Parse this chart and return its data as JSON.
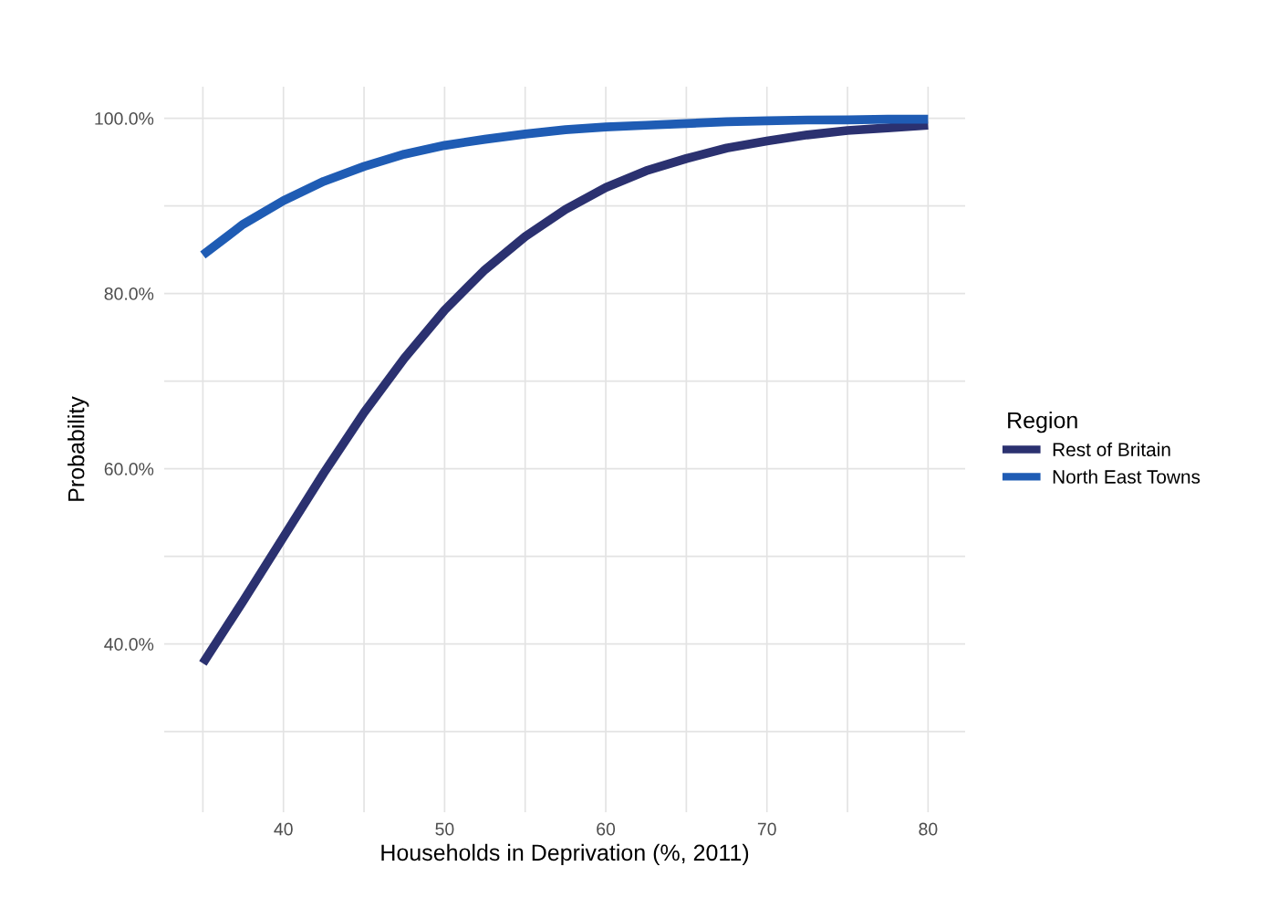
{
  "chart_data": {
    "type": "line",
    "xlabel": "Households in Deprivation (%, 2011)",
    "ylabel": "Probability",
    "legend_title": "Region",
    "legend": "right",
    "grid": true,
    "line_style": "solid",
    "marker": "none",
    "x": [
      35,
      37.5,
      40,
      42.5,
      45,
      47.5,
      50,
      52.5,
      55,
      57.5,
      60,
      62.5,
      65,
      67.5,
      70,
      72.5,
      75,
      77.5,
      80
    ],
    "xlim": [
      32.6,
      82.3
    ],
    "xticks": [
      {
        "value": 35,
        "label": null
      },
      40,
      {
        "value": 45,
        "label": null
      },
      50,
      {
        "value": 55,
        "label": null
      },
      60,
      {
        "value": 65,
        "label": null
      },
      70,
      {
        "value": 75,
        "label": null
      },
      80
    ],
    "ylim": [
      20.8,
      103.6
    ],
    "yticks": [
      {
        "value": 30,
        "label": null
      },
      {
        "value": 40,
        "label": "40.0%"
      },
      {
        "value": 50,
        "label": null
      },
      {
        "value": 60,
        "label": "60.0%"
      },
      {
        "value": 70,
        "label": null
      },
      {
        "value": 80,
        "label": "80.0%"
      },
      {
        "value": 90,
        "label": null
      },
      {
        "value": 100,
        "label": "100.0%"
      }
    ],
    "series": [
      {
        "name": "Rest of Britain",
        "color": "#2b3170",
        "values": [
          37.8,
          44.9,
          52.2,
          59.5,
          66.4,
          72.6,
          78.1,
          82.7,
          86.5,
          89.6,
          92.1,
          94.0,
          95.4,
          96.6,
          97.4,
          98.1,
          98.6,
          98.9,
          99.2
        ]
      },
      {
        "name": "North East Towns",
        "color": "#1f5cb4",
        "values": [
          84.4,
          87.9,
          90.6,
          92.8,
          94.5,
          95.9,
          96.9,
          97.6,
          98.2,
          98.7,
          99.0,
          99.2,
          99.4,
          99.6,
          99.7,
          99.8,
          99.8,
          99.9,
          99.9
        ]
      }
    ]
  }
}
